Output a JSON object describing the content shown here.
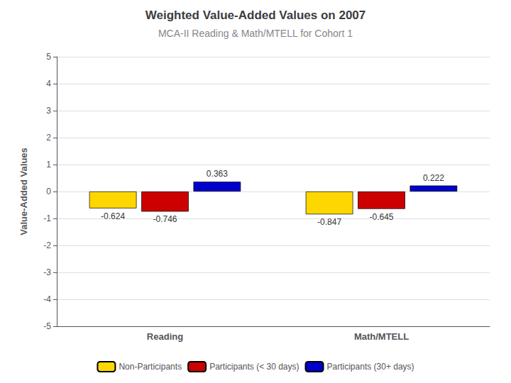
{
  "chart_data": {
    "type": "bar",
    "title": "Weighted Value-Added Values on 2007",
    "subtitle": "MCA-II Reading & Math/MTELL for Cohort 1",
    "y_label": "Value-Added Values",
    "categories": [
      "Reading",
      "Math/MTELL"
    ],
    "series": [
      {
        "name": "Non-Participants",
        "color": "#FFD700",
        "values": [
          -0.624,
          -0.847
        ]
      },
      {
        "name": "Participants (< 30 days)",
        "color": "#CC0000",
        "values": [
          -0.746,
          -0.645
        ]
      },
      {
        "name": "Participants (30+ days)",
        "color": "#0000CC",
        "values": [
          0.363,
          0.222
        ]
      }
    ],
    "ylim": [
      -5,
      5
    ],
    "yticks": [
      -5,
      -4,
      -3,
      -2,
      -1,
      0,
      1,
      2,
      3,
      4,
      5
    ],
    "grid": true,
    "legend": "bottom",
    "data_labels": true
  }
}
